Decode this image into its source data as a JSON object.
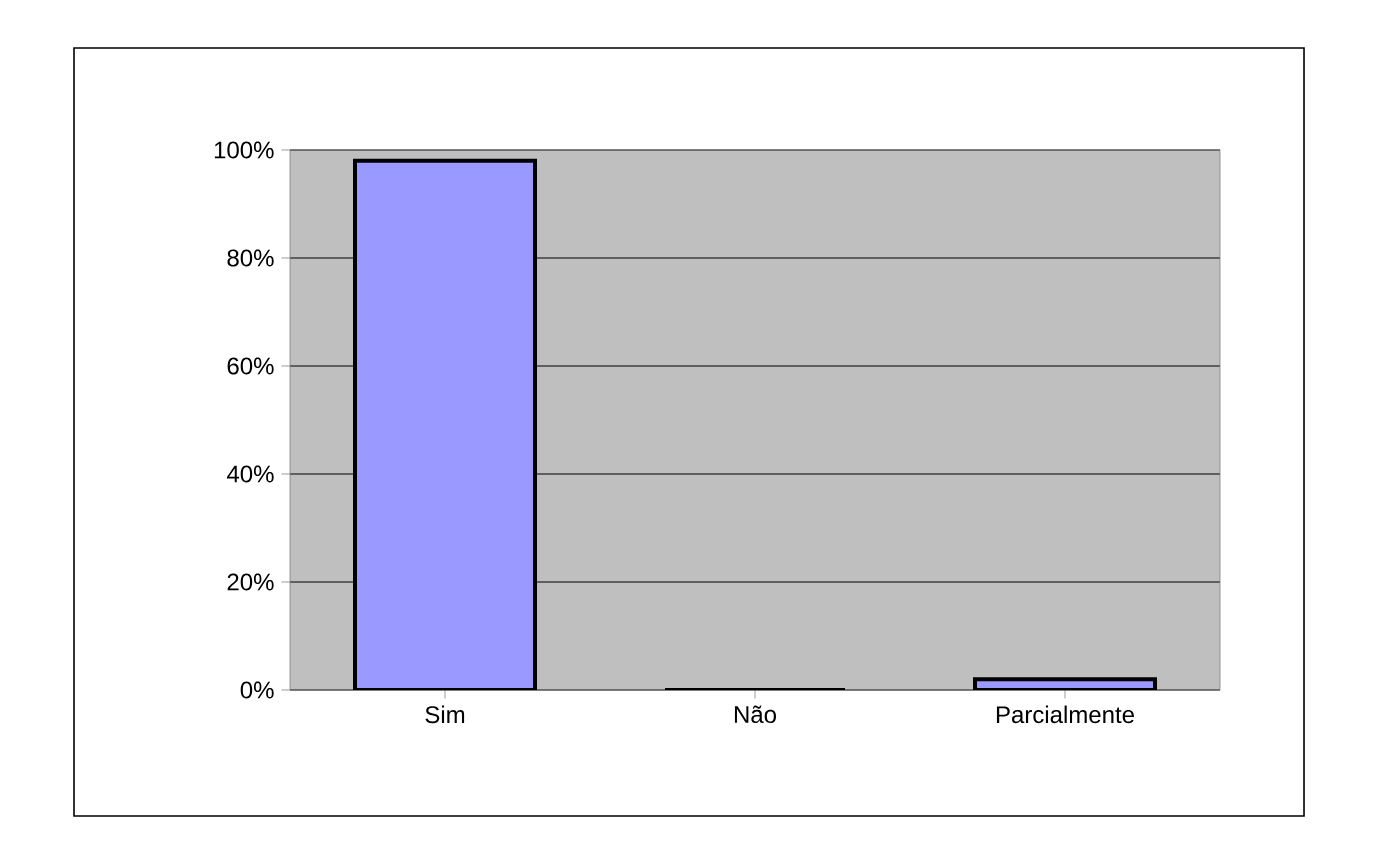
{
  "chart_data": {
    "type": "bar",
    "categories": [
      "Sim",
      "Não",
      "Parcialmente"
    ],
    "values": [
      98,
      0,
      2
    ],
    "color": "#9999ff",
    "ylim": [
      0,
      100
    ],
    "yticks": [
      {
        "value": 0,
        "label": "0%"
      },
      {
        "value": 20,
        "label": "20%"
      },
      {
        "value": 40,
        "label": "40%"
      },
      {
        "value": 60,
        "label": "60%"
      },
      {
        "value": 80,
        "label": "80%"
      },
      {
        "value": 100,
        "label": "100%"
      }
    ],
    "grid": "y"
  }
}
